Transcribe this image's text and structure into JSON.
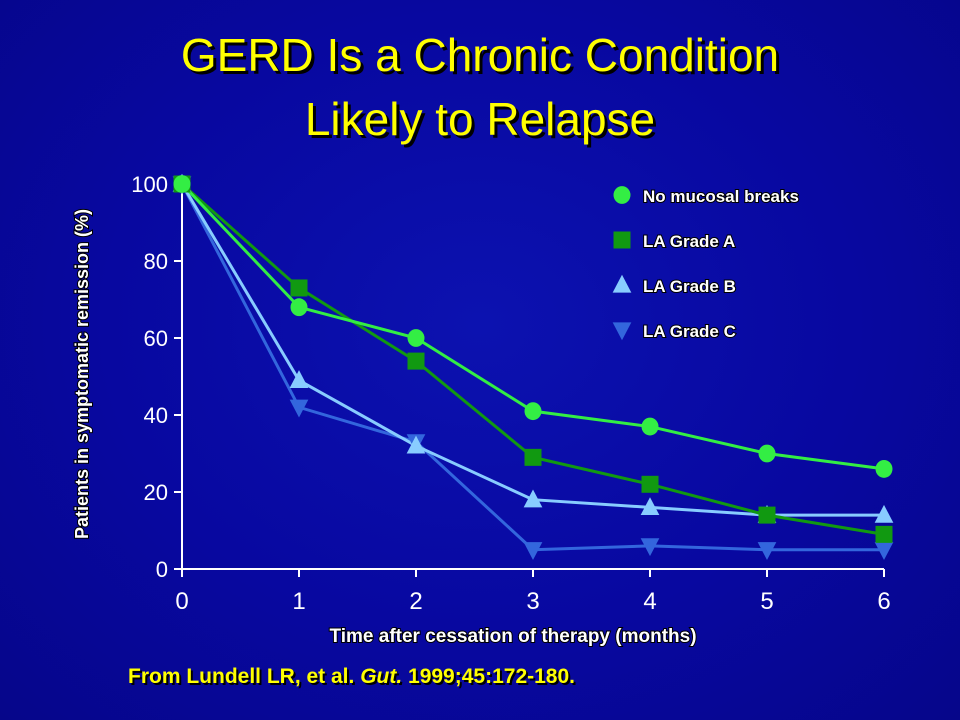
{
  "slide": {
    "title_line1": "GERD Is a Chronic Condition",
    "title_line2": "Likely to Relapse",
    "citation_prefix": "From Lundell LR, et al. ",
    "citation_journal": "Gut.",
    "citation_suffix": " 1999;45:172-180."
  },
  "colors": {
    "background": "#0808a0",
    "title": "#ffff00",
    "axis_text": "#ffffff",
    "no_breaks": "#33ee44",
    "grade_a": "#119911",
    "grade_b": "#88ccff",
    "grade_c": "#3366dd"
  },
  "chart_data": {
    "type": "line",
    "title": "",
    "xlabel": "Time after cessation of therapy (months)",
    "ylabel": "Patients in symptomatic remission (%)",
    "xlim": [
      0,
      6
    ],
    "ylim": [
      0,
      100
    ],
    "x_ticks": [
      0,
      1,
      2,
      3,
      4,
      5,
      6
    ],
    "y_ticks": [
      0,
      20,
      40,
      60,
      80,
      100
    ],
    "grid": false,
    "legend_position": "top-right",
    "series": [
      {
        "name": "No mucosal breaks",
        "marker": "circle",
        "color": "#33ee44",
        "x": [
          0,
          1,
          2,
          3,
          4,
          5,
          6
        ],
        "y": [
          100,
          68,
          60,
          41,
          37,
          30,
          26
        ]
      },
      {
        "name": "LA Grade A",
        "marker": "square",
        "color": "#119911",
        "x": [
          0,
          1,
          2,
          3,
          4,
          5,
          6
        ],
        "y": [
          100,
          73,
          54,
          29,
          22,
          14,
          9
        ]
      },
      {
        "name": "LA Grade B",
        "marker": "triangle-up",
        "color": "#88ccff",
        "x": [
          0,
          1,
          2,
          3,
          4,
          5,
          6
        ],
        "y": [
          100,
          49,
          32,
          18,
          16,
          14,
          14
        ]
      },
      {
        "name": "LA Grade C",
        "marker": "triangle-down",
        "color": "#3366dd",
        "x": [
          0,
          1,
          2,
          3,
          4,
          5,
          6
        ],
        "y": [
          100,
          42,
          33,
          5,
          6,
          5,
          5
        ]
      }
    ]
  }
}
